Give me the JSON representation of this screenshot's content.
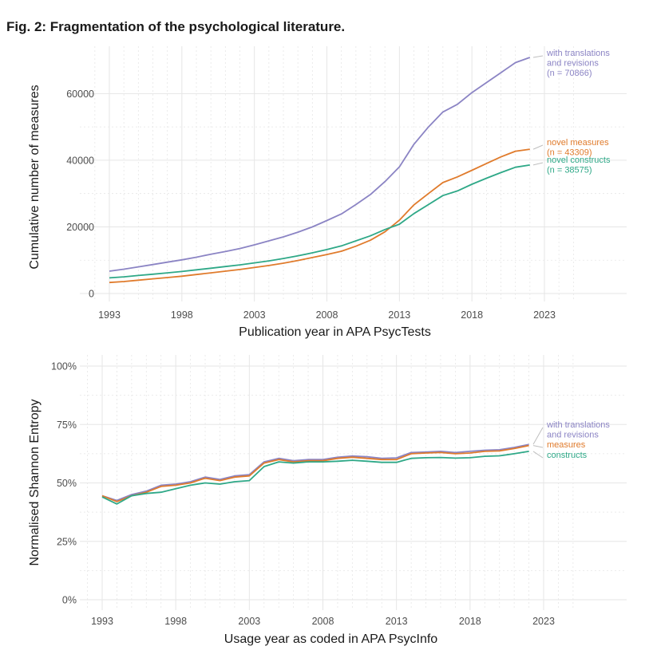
{
  "figure": {
    "title": "Fig. 2: Fragmentation of the psychological literature."
  },
  "colors": {
    "purple": "#8b84c4",
    "orange": "#e07b2c",
    "green": "#2ea887",
    "grid": "#e6e6e6"
  },
  "chart_data": [
    {
      "type": "line",
      "xlabel": "Publication year in APA PsycTests",
      "ylabel": "Cumulative number of measures",
      "xlim": [
        1993,
        2023
      ],
      "ylim": [
        0,
        70866
      ],
      "x_ticks": [
        1993,
        1998,
        2003,
        2008,
        2013,
        2018,
        2023
      ],
      "y_ticks": [
        0,
        20000,
        40000,
        60000
      ],
      "y_tick_labels": [
        "0",
        "20000",
        "40000",
        "60000"
      ],
      "grid": true,
      "series": [
        {
          "name": "with translations and revisions",
          "label_lines": [
            "with translations",
            "and revisions",
            "(n = 70866)"
          ],
          "color": "#8b84c4",
          "x": [
            1993,
            1994,
            1995,
            1996,
            1997,
            1998,
            1999,
            2000,
            2001,
            2002,
            2003,
            2004,
            2005,
            2006,
            2007,
            2008,
            2009,
            2010,
            2011,
            2012,
            2013,
            2014,
            2015,
            2016,
            2017,
            2018,
            2019,
            2020,
            2021,
            2022
          ],
          "y": [
            6700,
            7300,
            8000,
            8700,
            9400,
            10100,
            10900,
            11800,
            12600,
            13500,
            14600,
            15800,
            17000,
            18400,
            20000,
            21900,
            23900,
            26700,
            29700,
            33600,
            38000,
            44800,
            50000,
            54500,
            56800,
            60300,
            63300,
            66300,
            69300,
            70866
          ]
        },
        {
          "name": "novel measures",
          "label_lines": [
            "novel measures",
            "(n = 43309)"
          ],
          "color": "#e07b2c",
          "x": [
            1993,
            1994,
            1995,
            1996,
            1997,
            1998,
            1999,
            2000,
            2001,
            2002,
            2003,
            2004,
            2005,
            2006,
            2007,
            2008,
            2009,
            2010,
            2011,
            2012,
            2013,
            2014,
            2015,
            2016,
            2017,
            2018,
            2019,
            2020,
            2021,
            2022
          ],
          "y": [
            3300,
            3600,
            4000,
            4400,
            4800,
            5200,
            5700,
            6200,
            6700,
            7200,
            7800,
            8400,
            9100,
            9900,
            10800,
            11700,
            12700,
            14200,
            16000,
            18500,
            22000,
            26600,
            30000,
            33300,
            35000,
            37000,
            39000,
            41000,
            42700,
            43309
          ]
        },
        {
          "name": "novel constructs",
          "label_lines": [
            "novel constructs",
            "(n = 38575)"
          ],
          "color": "#2ea887",
          "x": [
            1993,
            1994,
            1995,
            1996,
            1997,
            1998,
            1999,
            2000,
            2001,
            2002,
            2003,
            2004,
            2005,
            2006,
            2007,
            2008,
            2009,
            2010,
            2011,
            2012,
            2013,
            2014,
            2015,
            2016,
            2017,
            2018,
            2019,
            2020,
            2021,
            2022
          ],
          "y": [
            4700,
            5000,
            5400,
            5800,
            6200,
            6600,
            7100,
            7600,
            8100,
            8600,
            9200,
            9800,
            10500,
            11300,
            12200,
            13200,
            14300,
            15800,
            17300,
            19200,
            20800,
            24000,
            26700,
            29400,
            30800,
            32800,
            34600,
            36300,
            37900,
            38575
          ]
        }
      ]
    },
    {
      "type": "line",
      "xlabel": "Usage year as coded in APA PsycInfo",
      "ylabel": "Normalised Shannon Entropy",
      "xlim": [
        1993,
        2023
      ],
      "ylim": [
        0,
        1
      ],
      "x_ticks": [
        1993,
        1998,
        2003,
        2008,
        2013,
        2018,
        2023
      ],
      "y_ticks": [
        0,
        0.25,
        0.5,
        0.75,
        1
      ],
      "y_tick_labels": [
        "0%",
        "25%",
        "50%",
        "75%",
        "100%"
      ],
      "grid": true,
      "series": [
        {
          "name": "with translations and revisions",
          "label_lines": [
            "with translations",
            "and revisions"
          ],
          "color": "#8b84c4",
          "x": [
            1993,
            1994,
            1995,
            1996,
            1997,
            1998,
            1999,
            2000,
            2001,
            2002,
            2003,
            2004,
            2005,
            2006,
            2007,
            2008,
            2009,
            2010,
            2011,
            2012,
            2013,
            2014,
            2015,
            2016,
            2017,
            2018,
            2019,
            2020,
            2021,
            2022
          ],
          "y": [
            0.445,
            0.425,
            0.45,
            0.465,
            0.49,
            0.495,
            0.505,
            0.525,
            0.515,
            0.53,
            0.535,
            0.59,
            0.605,
            0.595,
            0.6,
            0.6,
            0.61,
            0.615,
            0.612,
            0.605,
            0.607,
            0.63,
            0.632,
            0.635,
            0.63,
            0.635,
            0.64,
            0.642,
            0.652,
            0.665
          ]
        },
        {
          "name": "measures",
          "label_lines": [
            "measures"
          ],
          "color": "#e07b2c",
          "x": [
            1993,
            1994,
            1995,
            1996,
            1997,
            1998,
            1999,
            2000,
            2001,
            2002,
            2003,
            2004,
            2005,
            2006,
            2007,
            2008,
            2009,
            2010,
            2011,
            2012,
            2013,
            2014,
            2015,
            2016,
            2017,
            2018,
            2019,
            2020,
            2021,
            2022
          ],
          "y": [
            0.445,
            0.42,
            0.445,
            0.46,
            0.485,
            0.49,
            0.5,
            0.52,
            0.51,
            0.525,
            0.53,
            0.585,
            0.6,
            0.59,
            0.595,
            0.595,
            0.605,
            0.61,
            0.605,
            0.6,
            0.6,
            0.625,
            0.628,
            0.63,
            0.625,
            0.628,
            0.635,
            0.637,
            0.647,
            0.66
          ]
        },
        {
          "name": "constructs",
          "label_lines": [
            "constructs"
          ],
          "color": "#2ea887",
          "x": [
            1993,
            1994,
            1995,
            1996,
            1997,
            1998,
            1999,
            2000,
            2001,
            2002,
            2003,
            2004,
            2005,
            2006,
            2007,
            2008,
            2009,
            2010,
            2011,
            2012,
            2013,
            2014,
            2015,
            2016,
            2017,
            2018,
            2019,
            2020,
            2021,
            2022
          ],
          "y": [
            0.44,
            0.41,
            0.445,
            0.455,
            0.46,
            0.475,
            0.49,
            0.5,
            0.495,
            0.505,
            0.51,
            0.57,
            0.59,
            0.585,
            0.59,
            0.59,
            0.593,
            0.597,
            0.593,
            0.588,
            0.588,
            0.605,
            0.608,
            0.609,
            0.606,
            0.608,
            0.614,
            0.616,
            0.625,
            0.635
          ]
        }
      ]
    }
  ]
}
